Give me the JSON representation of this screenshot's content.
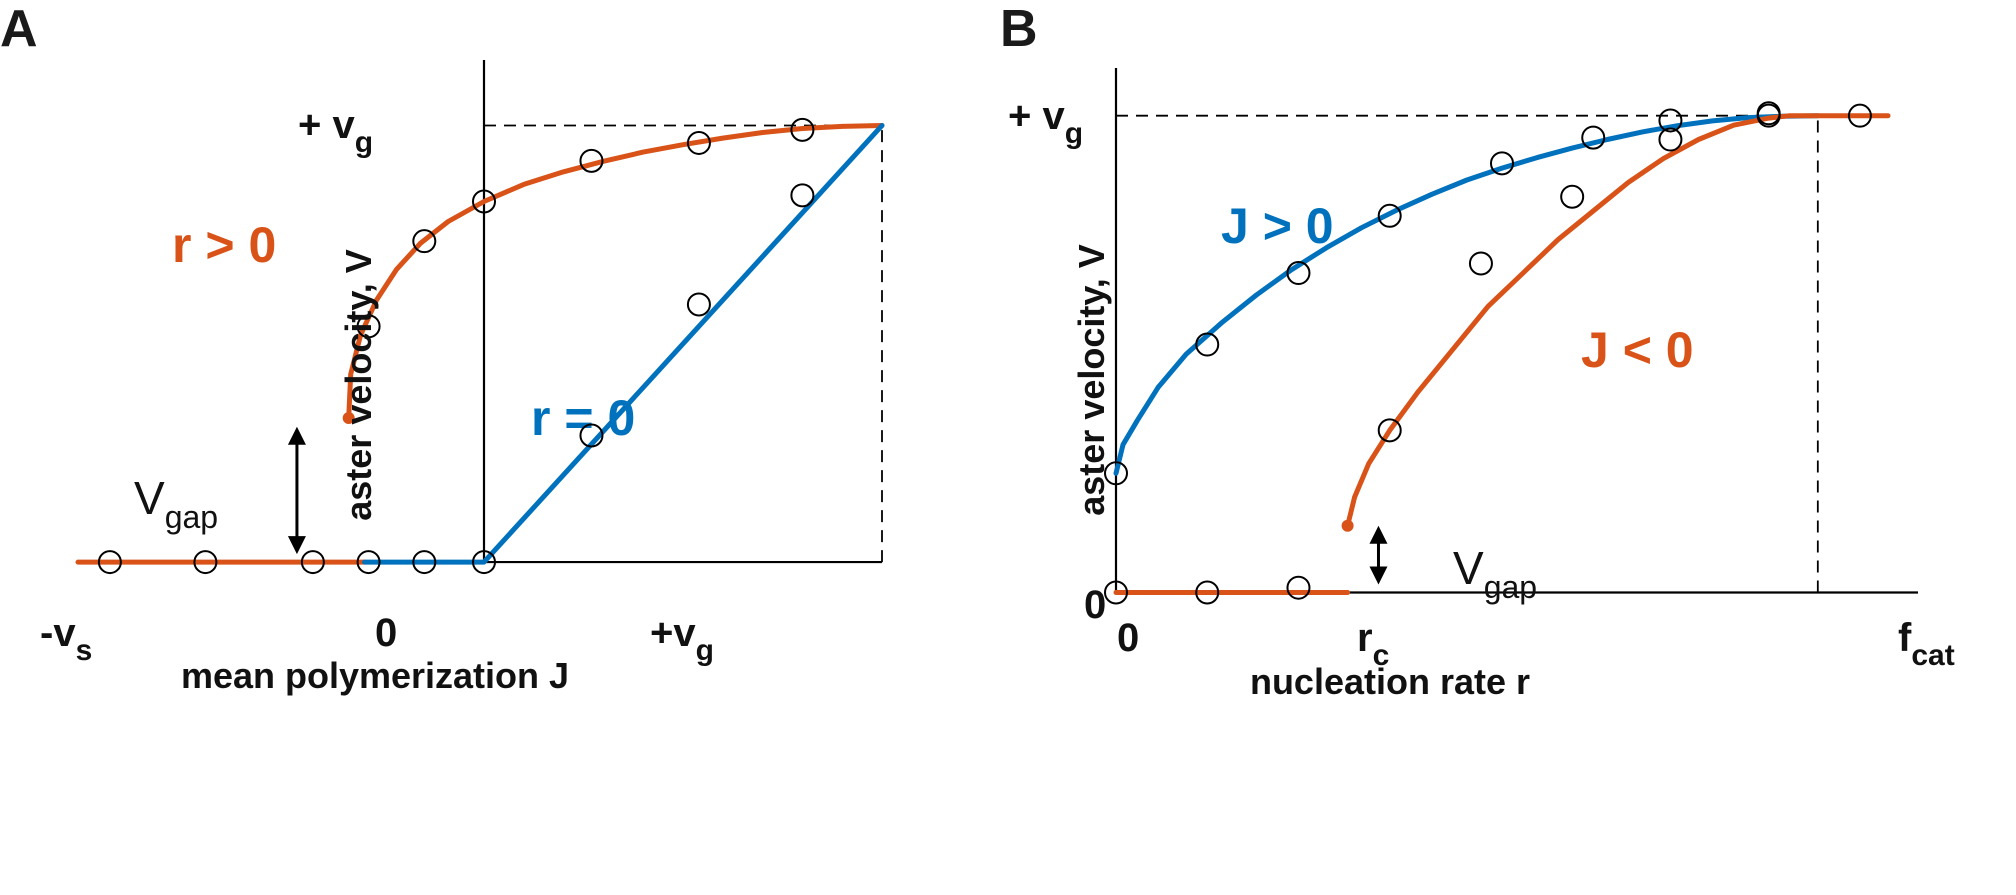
{
  "colors": {
    "orange": "#d95319",
    "blue": "#0072bd",
    "axis": "#000000"
  },
  "chart_data": [
    {
      "panel": "A",
      "type": "line",
      "xlabel": "mean polymerization J",
      "ylabel": "aster velocity, V",
      "x_ticks": [
        {
          "main": "-v",
          "sub": "s"
        },
        {
          "main": "0",
          "sub": ""
        },
        {
          "main": "+v",
          "sub": "g"
        }
      ],
      "y_ticks": [
        {
          "main": "+ v",
          "sub": "g"
        }
      ],
      "xlim": [
        -1,
        1
      ],
      "ylim": [
        -0.08,
        1.15
      ],
      "reference_lines": [
        {
          "orientation": "horizontal",
          "value": 1,
          "x_from": 0,
          "x_to": 1
        },
        {
          "orientation": "vertical",
          "value": 1,
          "y_from": 0,
          "y_to": 1
        }
      ],
      "gap_annotation": {
        "main": "V",
        "sub": "gap",
        "x": -0.47,
        "y_from": 0,
        "y_to": 0.31
      },
      "series": [
        {
          "name": "r > 0",
          "color": "orange",
          "curves": [
            {
              "end_dot": false,
              "points": [
                [
                  -1.02,
                  0
                ],
                [
                  -0.3,
                  0
                ]
              ]
            },
            {
              "end_dot": "start",
              "points": [
                [
                  -0.34,
                  0.33
                ],
                [
                  -0.335,
                  0.43
                ],
                [
                  -0.31,
                  0.52
                ],
                [
                  -0.27,
                  0.6
                ],
                [
                  -0.22,
                  0.67
                ],
                [
                  -0.16,
                  0.73
                ],
                [
                  -0.09,
                  0.78
                ],
                [
                  0,
                  0.826
                ],
                [
                  0.1,
                  0.865
                ],
                [
                  0.2,
                  0.894
                ],
                [
                  0.3,
                  0.918
                ],
                [
                  0.4,
                  0.939
                ],
                [
                  0.5,
                  0.956
                ],
                [
                  0.6,
                  0.971
                ],
                [
                  0.7,
                  0.984
                ],
                [
                  0.8,
                  0.993
                ],
                [
                  0.9,
                  0.998
                ],
                [
                  1,
                  1
                ]
              ]
            }
          ]
        },
        {
          "name": "r = 0",
          "color": "blue",
          "curves": [
            {
              "end_dot": false,
              "points": [
                [
                  -0.3,
                  0
                ],
                [
                  0,
                  0
                ],
                [
                  1,
                  1
                ]
              ]
            }
          ]
        }
      ],
      "simulation_points": [
        [
          -0.94,
          0
        ],
        [
          -0.7,
          0
        ],
        [
          -0.43,
          0
        ],
        [
          -0.29,
          0
        ],
        [
          -0.15,
          0
        ],
        [
          0,
          0
        ],
        [
          0.27,
          0.29
        ],
        [
          0.54,
          0.59
        ],
        [
          0.8,
          0.84
        ],
        [
          0.8,
          0.99
        ],
        [
          0.54,
          0.96
        ],
        [
          0.27,
          0.919
        ],
        [
          0,
          0.826
        ],
        [
          -0.15,
          0.735
        ],
        [
          -0.29,
          0.54
        ]
      ]
    },
    {
      "panel": "B",
      "type": "line",
      "xlabel": "nucleation rate r",
      "ylabel": "aster velocity, V",
      "x_ticks": [
        {
          "main": "0",
          "sub": ""
        },
        {
          "main": "r",
          "sub": "c"
        },
        {
          "main": "f",
          "sub": "cat"
        }
      ],
      "y_ticks": [
        {
          "main": "+ v",
          "sub": "g"
        },
        {
          "main": "0",
          "sub": ""
        }
      ],
      "xlim": [
        0,
        1.1
      ],
      "ylim": [
        -0.02,
        1.1
      ],
      "reference_lines": [
        {
          "orientation": "horizontal",
          "value": 1,
          "x_from": 0,
          "x_to": 1
        },
        {
          "orientation": "vertical",
          "value": 1,
          "y_from": 0,
          "y_to": 1
        }
      ],
      "gap_annotation": {
        "main": "V",
        "sub": "gap",
        "x": 0.374,
        "y_from": 0,
        "y_to": 0.14
      },
      "series": [
        {
          "name": "J > 0",
          "color": "blue",
          "curves": [
            {
              "end_dot": false,
              "points": [
                [
                  0,
                  0.25
                ],
                [
                  0.01,
                  0.31
                ],
                [
                  0.03,
                  0.36
                ],
                [
                  0.06,
                  0.43
                ],
                [
                  0.1,
                  0.5
                ],
                [
                  0.15,
                  0.565
                ],
                [
                  0.2,
                  0.624
                ],
                [
                  0.25,
                  0.677
                ],
                [
                  0.3,
                  0.723
                ],
                [
                  0.35,
                  0.765
                ],
                [
                  0.4,
                  0.802
                ],
                [
                  0.45,
                  0.835
                ],
                [
                  0.5,
                  0.865
                ],
                [
                  0.55,
                  0.89
                ],
                [
                  0.6,
                  0.912
                ],
                [
                  0.65,
                  0.932
                ],
                [
                  0.7,
                  0.95
                ],
                [
                  0.75,
                  0.966
                ],
                [
                  0.8,
                  0.979
                ],
                [
                  0.85,
                  0.989
                ],
                [
                  0.9,
                  0.996
                ],
                [
                  0.95,
                  0.999
                ],
                [
                  1,
                  1
                ]
              ]
            }
          ]
        },
        {
          "name": "J < 0",
          "color": "orange",
          "curves": [
            {
              "end_dot": false,
              "points": [
                [
                  0,
                  0
                ],
                [
                  0.33,
                  0
                ]
              ]
            },
            {
              "end_dot": "start",
              "points": [
                [
                  0.33,
                  0.14
                ],
                [
                  0.34,
                  0.2
                ],
                [
                  0.36,
                  0.27
                ],
                [
                  0.39,
                  0.34
                ],
                [
                  0.43,
                  0.42
                ],
                [
                  0.48,
                  0.51
                ],
                [
                  0.53,
                  0.6
                ],
                [
                  0.58,
                  0.67
                ],
                [
                  0.63,
                  0.74
                ],
                [
                  0.68,
                  0.8
                ],
                [
                  0.73,
                  0.86
                ],
                [
                  0.78,
                  0.91
                ],
                [
                  0.83,
                  0.95
                ],
                [
                  0.88,
                  0.98
                ],
                [
                  0.93,
                  0.995
                ],
                [
                  0.96,
                  1
                ],
                [
                  1.1,
                  1
                ]
              ]
            }
          ]
        }
      ],
      "simulation_points": [
        [
          0,
          0
        ],
        [
          0.13,
          0
        ],
        [
          0.26,
          0.01
        ],
        [
          0,
          0.25
        ],
        [
          0.13,
          0.52
        ],
        [
          0.26,
          0.67
        ],
        [
          0.39,
          0.79
        ],
        [
          0.55,
          0.9
        ],
        [
          0.68,
          0.954
        ],
        [
          0.79,
          0.99
        ],
        [
          0.93,
          1
        ],
        [
          0.93,
          1.005
        ],
        [
          1.06,
          1
        ],
        [
          0.39,
          0.34
        ],
        [
          0.52,
          0.69
        ],
        [
          0.65,
          0.83
        ],
        [
          0.79,
          0.95
        ]
      ]
    }
  ]
}
